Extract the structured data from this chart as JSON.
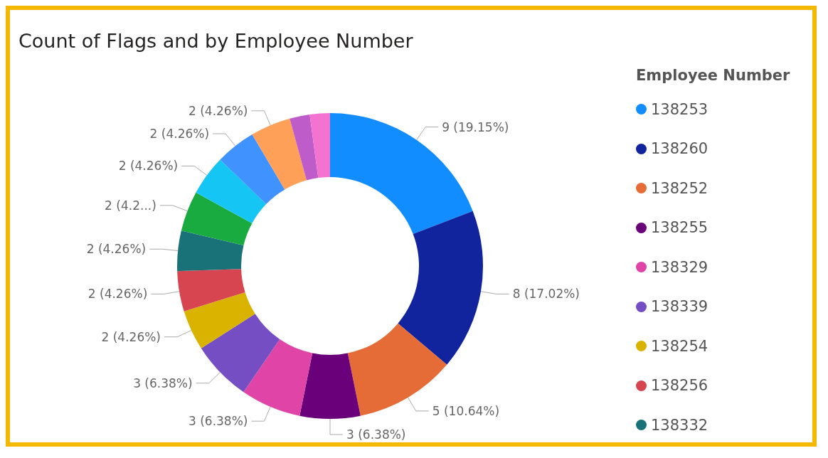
{
  "chart_data": {
    "type": "donut",
    "title": "Count of Flags and by Employee Number",
    "legend_title": "Employee Number",
    "legend": "right",
    "categories": [
      "138253",
      "138260",
      "138252",
      "138255",
      "138329",
      "138339",
      "138254",
      "138256",
      "138332",
      null,
      null,
      null,
      null,
      null,
      null
    ],
    "values": [
      9,
      8,
      5,
      3,
      3,
      3,
      2,
      2,
      2,
      2,
      2,
      2,
      2,
      1,
      1
    ],
    "colors": [
      "#118dff",
      "#12239e",
      "#e66c37",
      "#6b007b",
      "#e044a7",
      "#744ec2",
      "#d9b300",
      "#d64550",
      "#197278",
      "#1aab40",
      "#15c6f4",
      "#4092ff",
      "#ffa058",
      "#be5dc9",
      "#f472d0"
    ],
    "value_labels": [
      "9 (19.15%)",
      "8 (17.02%)",
      "5 (10.64%)",
      "3 (6.38%)",
      "3 (6.38%)",
      "3 (6.38%)",
      "2 (4.26%)",
      "2 (4.26%)",
      "2 (4.26%)",
      "2 (4.2...)",
      "2 (4.26%)",
      "2 (4.26%)",
      "2 (4.26%)",
      null,
      null
    ]
  }
}
